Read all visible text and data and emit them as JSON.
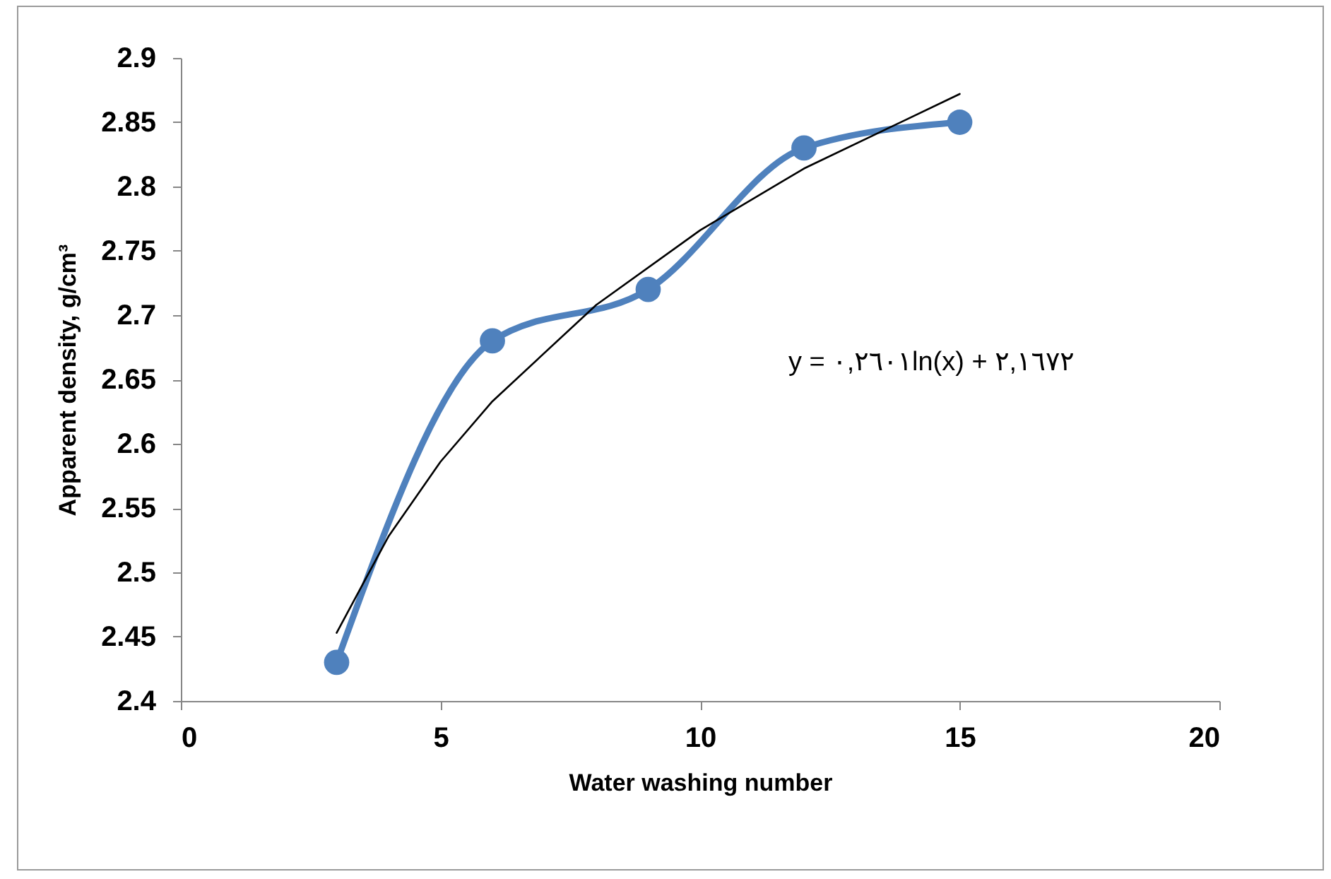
{
  "chart_data": {
    "type": "line",
    "xlabel": "Water washing number",
    "ylabel": "Apparent density, g/cm³",
    "xlim": [
      0,
      20
    ],
    "xticks": [
      0,
      5,
      10,
      15,
      20
    ],
    "ylim": [
      2.4,
      2.9
    ],
    "yticks": [
      2.4,
      2.45,
      2.5,
      2.55,
      2.6,
      2.65,
      2.7,
      2.75,
      2.8,
      2.85,
      2.9
    ],
    "grid": false,
    "series": [
      {
        "color": "#4f81bd",
        "marker": "circle",
        "x": [
          3,
          6,
          9,
          12,
          15
        ],
        "values": [
          2.43,
          2.68,
          2.72,
          2.83,
          2.85
        ]
      },
      {
        "color": "#000000",
        "marker": "none",
        "line_style": "solid",
        "x": [
          3,
          4,
          5,
          6,
          8,
          10,
          12,
          15
        ],
        "values": [
          2.453,
          2.528,
          2.586,
          2.633,
          2.708,
          2.766,
          2.814,
          2.872
        ]
      }
    ],
    "annotations": [
      "y = ٠,٢٦٠١ln(x) + ٢,١٦٧٢"
    ]
  }
}
